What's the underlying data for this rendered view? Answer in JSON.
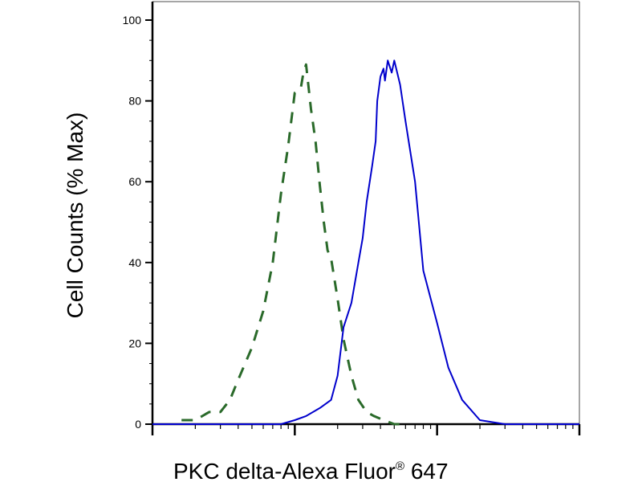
{
  "chart_data": {
    "type": "line",
    "xlabel": "PKC delta-Alexa Fluor",
    "xlabel_mark": "®",
    "xlabel_tail": " 647",
    "ylabel": "Cell Counts (% Max)",
    "x_scale": "log",
    "xlim": [
      1,
      1000
    ],
    "ylim": [
      0,
      100
    ],
    "y_ticks": [
      0,
      20,
      40,
      60,
      80,
      100
    ],
    "y_tick_labels": [
      "0",
      "20",
      "40",
      "60",
      "80",
      "100"
    ],
    "grid": false,
    "series": [
      {
        "color": "#2a6a2a",
        "line_style": "dashed",
        "x": [
          1.6,
          2.0,
          2.5,
          3.0,
          3.5,
          4.0,
          5.0,
          6.0,
          7.0,
          8.0,
          9.0,
          10.0,
          11.0,
          11.5,
          12.0,
          13.0,
          14.0,
          15.0,
          16.0,
          17.0,
          18.0,
          20.0,
          22.0,
          25.0,
          28.0,
          32.0,
          36.0,
          42.0,
          50.0,
          60.0
        ],
        "y": [
          1,
          1,
          3,
          3,
          6,
          11,
          19,
          28,
          40,
          57,
          69,
          82,
          83,
          87,
          89,
          78,
          70,
          59,
          50,
          43,
          41,
          31,
          21,
          12,
          6,
          3,
          2,
          1,
          0,
          0
        ]
      },
      {
        "color": "#0000cc",
        "line_style": "solid",
        "x": [
          1.0,
          5.0,
          8.0,
          10.0,
          12.0,
          15.0,
          18.0,
          20.0,
          22.0,
          25.0,
          28.0,
          30.0,
          32.0,
          35.0,
          37.0,
          38.0,
          40.0,
          42.0,
          43.0,
          45.0,
          48.0,
          50.0,
          55.0,
          60.0,
          70.0,
          80.0,
          100.0,
          120.0,
          150.0,
          200.0,
          300.0,
          500.0,
          1000.0
        ],
        "y": [
          0,
          0,
          0,
          1,
          2,
          4,
          6,
          12,
          24,
          30,
          40,
          46,
          55,
          64,
          70,
          80,
          86,
          88,
          85,
          90,
          87,
          90,
          84,
          75,
          60,
          38,
          25,
          14,
          6,
          1,
          0,
          0,
          0
        ]
      }
    ]
  }
}
